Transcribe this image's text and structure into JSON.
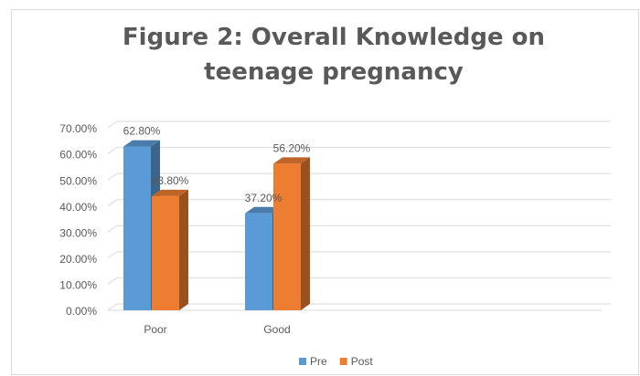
{
  "chart_data": {
    "type": "bar3d",
    "title": "Figure 2: Overall Knowledge on teenage pregnancy",
    "categories": [
      "Poor",
      "Good"
    ],
    "series": [
      {
        "name": "Pre",
        "color": "#5b9bd5",
        "values": [
          62.8,
          37.2
        ],
        "value_labels": [
          "62.80%",
          "37.20%"
        ]
      },
      {
        "name": "Post",
        "color": "#ed7d31",
        "values": [
          43.8,
          56.2
        ],
        "value_labels": [
          "43.80%",
          "56.20%"
        ]
      }
    ],
    "ylim": [
      0,
      70
    ],
    "yticks": [
      {
        "value": 0,
        "label": "0.00%"
      },
      {
        "value": 10,
        "label": "10.00%"
      },
      {
        "value": 20,
        "label": "20.00%"
      },
      {
        "value": 30,
        "label": "30.00%"
      },
      {
        "value": 40,
        "label": "40.00%"
      },
      {
        "value": 50,
        "label": "50.00%"
      },
      {
        "value": 60,
        "label": "60.00%"
      },
      {
        "value": 70,
        "label": "70.00%"
      }
    ],
    "grid": true,
    "legend": "bottom"
  }
}
